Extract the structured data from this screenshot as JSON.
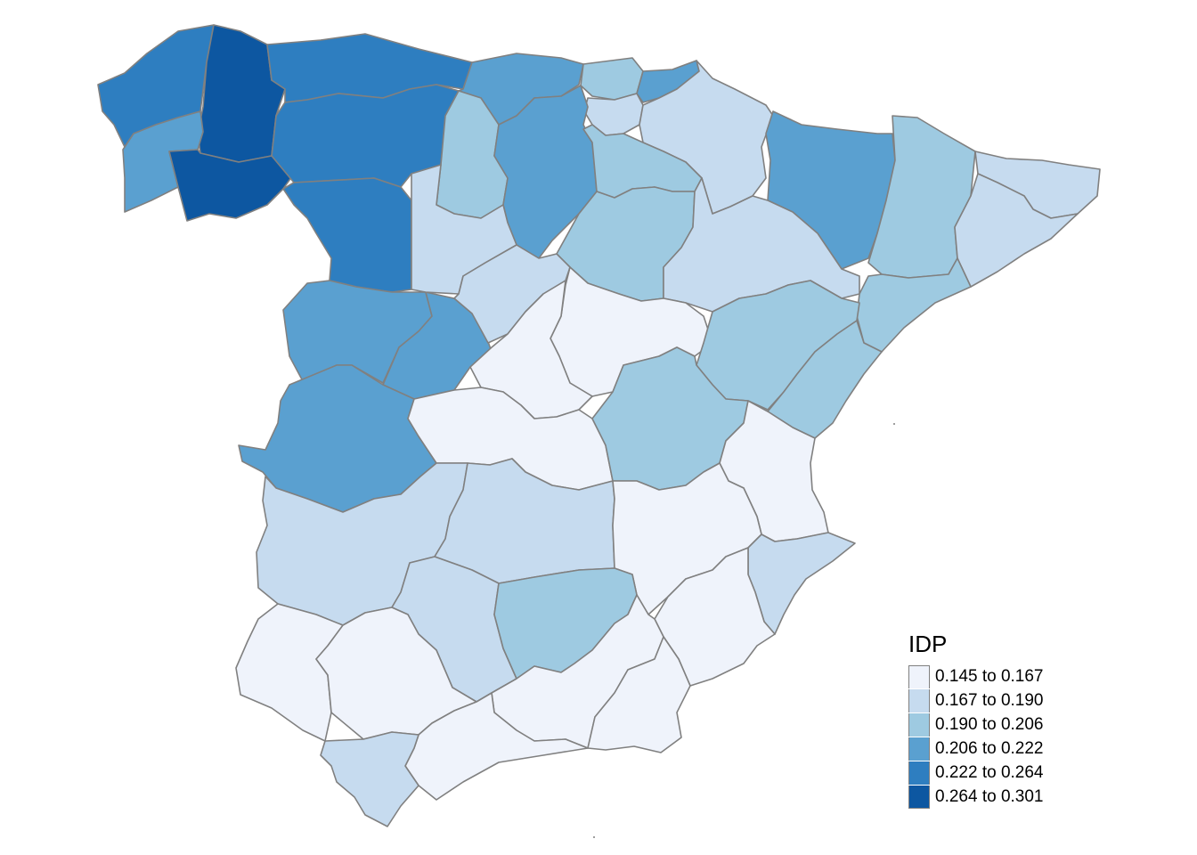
{
  "legend": {
    "title": "IDP",
    "classes": [
      {
        "label": "0.145 to 0.167",
        "color": "#eff3fb"
      },
      {
        "label": "0.167 to 0.190",
        "color": "#c6dbef"
      },
      {
        "label": "0.190 to 0.206",
        "color": "#9ecae1"
      },
      {
        "label": "0.206 to 0.222",
        "color": "#5aa0d0"
      },
      {
        "label": "0.222 to 0.264",
        "color": "#2e7ec0"
      },
      {
        "label": "0.264 to 0.301",
        "color": "#0d57a1"
      }
    ]
  },
  "provinces": [
    {
      "id": "a-coruna",
      "cls": 4
    },
    {
      "id": "lugo",
      "cls": 5
    },
    {
      "id": "pontevedra",
      "cls": 3
    },
    {
      "id": "ourense",
      "cls": 5
    },
    {
      "id": "asturias",
      "cls": 4
    },
    {
      "id": "leon",
      "cls": 4
    },
    {
      "id": "zamora",
      "cls": 4
    },
    {
      "id": "salamanca",
      "cls": 3
    },
    {
      "id": "avila",
      "cls": 3
    },
    {
      "id": "caceres",
      "cls": 3
    },
    {
      "id": "cantabria",
      "cls": 3
    },
    {
      "id": "bizkaia",
      "cls": 2
    },
    {
      "id": "gipuzkoa",
      "cls": 3
    },
    {
      "id": "araba",
      "cls": 1
    },
    {
      "id": "navarra",
      "cls": 1
    },
    {
      "id": "huesca",
      "cls": 3
    },
    {
      "id": "lleida",
      "cls": 2
    },
    {
      "id": "girona",
      "cls": 1
    },
    {
      "id": "barcelona",
      "cls": 1
    },
    {
      "id": "tarragona",
      "cls": 2
    },
    {
      "id": "palencia",
      "cls": 2
    },
    {
      "id": "burgos",
      "cls": 3
    },
    {
      "id": "la-rioja",
      "cls": 2
    },
    {
      "id": "soria",
      "cls": 2
    },
    {
      "id": "zaragoza",
      "cls": 1
    },
    {
      "id": "valladolid",
      "cls": 1
    },
    {
      "id": "segovia",
      "cls": 1
    },
    {
      "id": "guadalajara",
      "cls": 0
    },
    {
      "id": "teruel",
      "cls": 2
    },
    {
      "id": "castellon",
      "cls": 2
    },
    {
      "id": "madrid",
      "cls": 0
    },
    {
      "id": "toledo",
      "cls": 0
    },
    {
      "id": "cuenca",
      "cls": 2
    },
    {
      "id": "valencia",
      "cls": 0
    },
    {
      "id": "badajoz",
      "cls": 1
    },
    {
      "id": "ciudad-real",
      "cls": 1
    },
    {
      "id": "albacete",
      "cls": 0
    },
    {
      "id": "alicante",
      "cls": 1
    },
    {
      "id": "murcia",
      "cls": 0
    },
    {
      "id": "cordoba",
      "cls": 1
    },
    {
      "id": "jaen",
      "cls": 2
    },
    {
      "id": "huelva",
      "cls": 0
    },
    {
      "id": "sevilla",
      "cls": 0
    },
    {
      "id": "granada",
      "cls": 0
    },
    {
      "id": "almeria",
      "cls": 0
    },
    {
      "id": "malaga",
      "cls": 0
    },
    {
      "id": "cadiz",
      "cls": 1
    }
  ]
}
